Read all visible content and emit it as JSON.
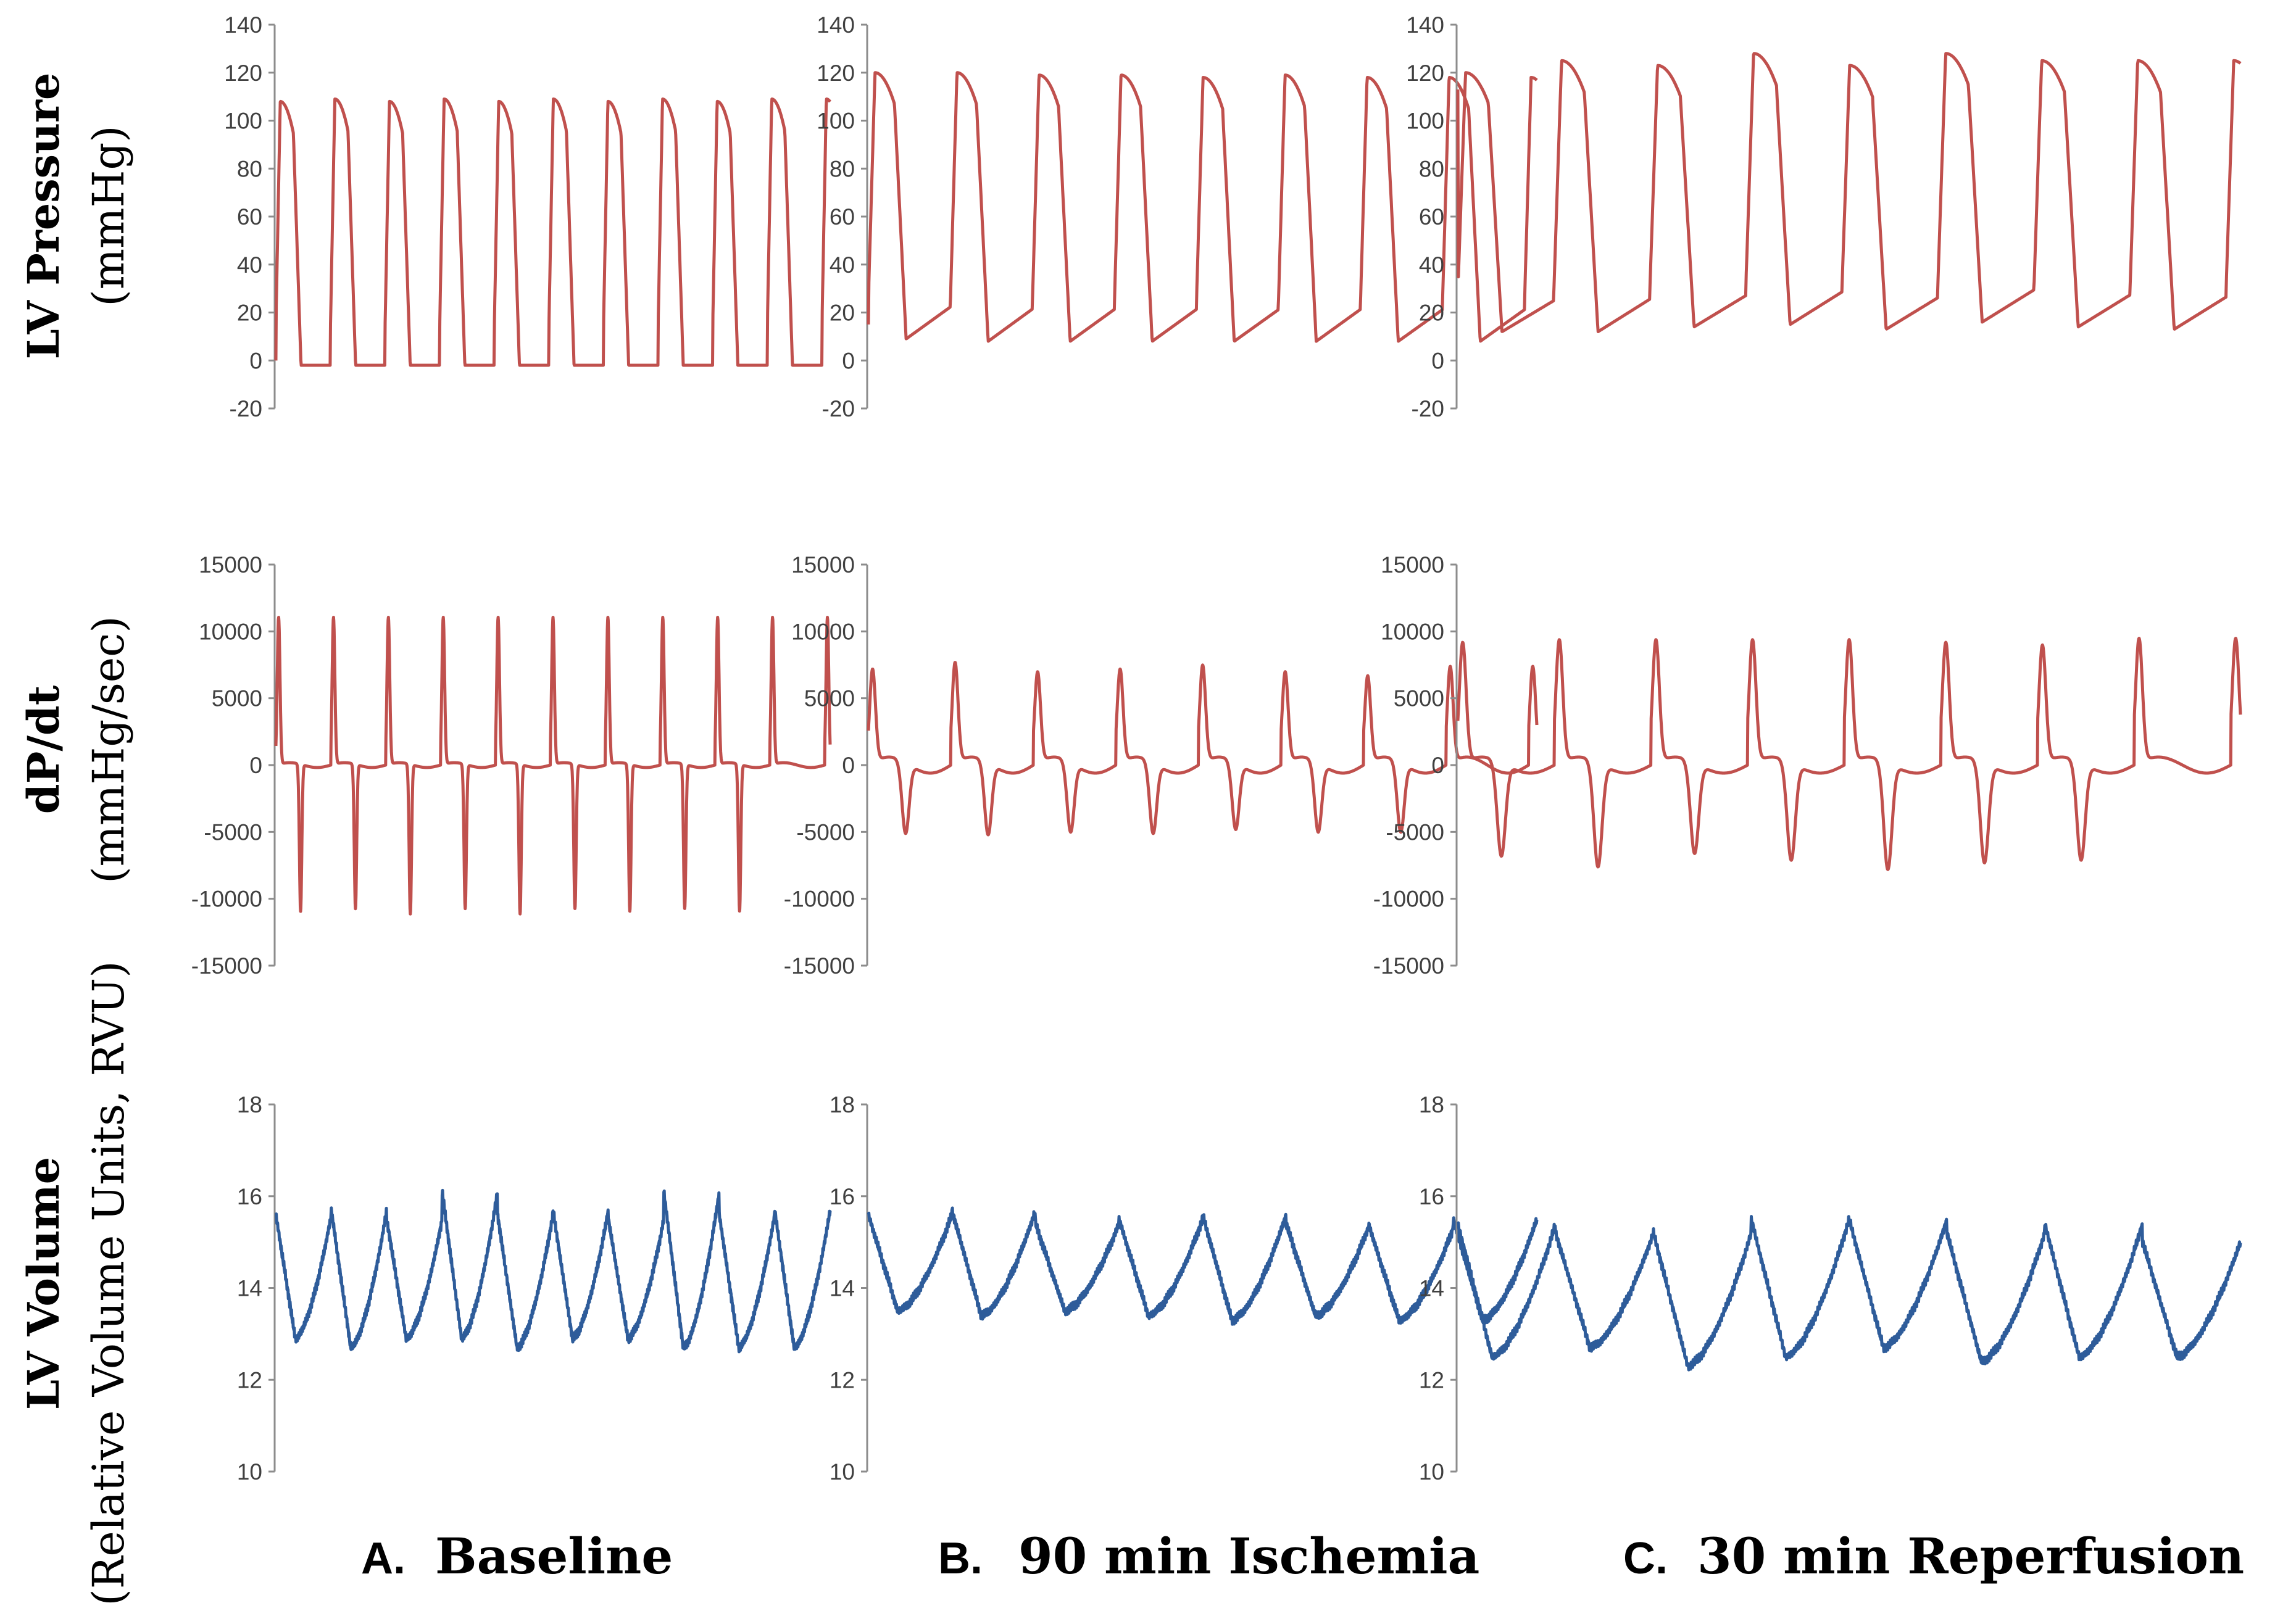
{
  "figure": {
    "row_labels": [
      {
        "bold": "LV Pressure",
        "sub": "(mmHg)"
      },
      {
        "bold": "dP/dt",
        "sub": "(mmHg/sec)"
      },
      {
        "bold": "LV Volume",
        "sub": "(Relative Volume Units, RVU)"
      }
    ],
    "column_labels": [
      {
        "letter": "A.",
        "text": "Baseline"
      },
      {
        "letter": "B.",
        "text": "90 min Ischemia"
      },
      {
        "letter": "C.",
        "text": "30 min Reperfusion"
      }
    ],
    "colors": {
      "pressure": "#c0504d",
      "dpdt": "#c0504d",
      "volume": "#2e5c9a",
      "axis": "#8c8c8c"
    }
  },
  "chart_data": [
    {
      "type": "line",
      "row": 0,
      "col": 0,
      "title": "",
      "xlabel": "",
      "ylabel": "LV Pressure (mmHg)",
      "ylim": [
        -20,
        140
      ],
      "yticks": [
        "140",
        "120",
        "100",
        "80",
        "60",
        "40",
        "20",
        "0",
        "-20"
      ],
      "series": [
        {
          "peaks": [
            108,
            109,
            108,
            109,
            108,
            109,
            108,
            109,
            108,
            109
          ],
          "troughs": [
            -2,
            -2,
            -2,
            -2,
            -2,
            -2,
            -2,
            -2,
            -2,
            -2
          ],
          "start": 0,
          "end": -1
        }
      ]
    },
    {
      "type": "line",
      "row": 0,
      "col": 1,
      "title": "",
      "xlabel": "",
      "ylabel": "LV Pressure (mmHg)",
      "ylim": [
        -20,
        140
      ],
      "yticks": [
        "140",
        "120",
        "100",
        "80",
        "60",
        "40",
        "20",
        "0",
        "-20"
      ],
      "series": [
        {
          "peaks": [
            120,
            120,
            119,
            119,
            118,
            119,
            118,
            118
          ],
          "troughs": [
            9,
            8,
            8,
            8,
            8,
            8,
            8,
            8
          ],
          "start": 15,
          "end": 115
        }
      ]
    },
    {
      "type": "line",
      "row": 0,
      "col": 2,
      "title": "",
      "xlabel": "",
      "ylabel": "LV Pressure (mmHg)",
      "ylim": [
        -20,
        140
      ],
      "yticks": [
        "140",
        "120",
        "100",
        "80",
        "60",
        "40",
        "20",
        "0",
        "-20"
      ],
      "series": [
        {
          "peaks": [
            120,
            125,
            123,
            128,
            123,
            128,
            125,
            125
          ],
          "troughs": [
            12,
            12,
            14,
            15,
            13,
            16,
            14,
            13
          ],
          "start": 113,
          "end": 114
        }
      ]
    },
    {
      "type": "line",
      "row": 1,
      "col": 0,
      "title": "",
      "xlabel": "",
      "ylabel": "dP/dt (mmHg/sec)",
      "ylim": [
        -15000,
        15000
      ],
      "yticks": [
        "15000",
        "10000",
        "5000",
        "0",
        "-5000",
        "-10000",
        "-15000"
      ],
      "series": [
        {
          "positive_peaks": [
            11000,
            11000,
            11000,
            11000,
            11000,
            11000,
            11000,
            11000,
            11000,
            11000
          ],
          "negative_peaks": [
            -11000,
            -10800,
            -11200,
            -10800,
            -11200,
            -10800,
            -11000,
            -10800,
            -11000
          ]
        }
      ]
    },
    {
      "type": "line",
      "row": 1,
      "col": 1,
      "title": "",
      "xlabel": "",
      "ylabel": "dP/dt (mmHg/sec)",
      "ylim": [
        -15000,
        15000
      ],
      "yticks": [
        "15000",
        "10000",
        "5000",
        "0",
        "-5000",
        "-10000",
        "-15000"
      ],
      "series": [
        {
          "positive_peaks": [
            7000,
            7500,
            6800,
            7000,
            7300,
            6800,
            6500,
            7200
          ],
          "negative_peaks": [
            -5300,
            -5400,
            -5200,
            -5300,
            -5000,
            -5200,
            -5200
          ]
        }
      ]
    },
    {
      "type": "line",
      "row": 1,
      "col": 2,
      "title": "",
      "xlabel": "",
      "ylabel": "dP/dt (mmHg/sec)",
      "ylim": [
        -15000,
        15000
      ],
      "yticks": [
        "15000",
        "10000",
        "5000",
        "0",
        "-5000",
        "-10000",
        "-15000"
      ],
      "series": [
        {
          "positive_peaks": [
            9000,
            9200,
            9200,
            9200,
            9200,
            9000,
            8800,
            9300
          ],
          "negative_peaks": [
            -7000,
            -7800,
            -6800,
            -7300,
            -8000,
            -7500,
            -7300
          ]
        }
      ]
    },
    {
      "type": "line",
      "row": 2,
      "col": 0,
      "title": "",
      "xlabel": "",
      "ylabel": "LV Volume (Relative Volume Units, RVU)",
      "ylim": [
        10,
        18
      ],
      "yticks": [
        "18",
        "16",
        "14",
        "12",
        "10"
      ],
      "series": [
        {
          "peaks": [
            15.6,
            15.7,
            15.5,
            16.1,
            15.6,
            15.7,
            15.5,
            16.1,
            15.6,
            15.7
          ],
          "troughs": [
            12.9,
            12.7,
            12.9,
            12.9,
            12.7,
            12.9,
            12.9,
            12.7,
            12.7
          ]
        }
      ]
    },
    {
      "type": "line",
      "row": 2,
      "col": 1,
      "title": "",
      "xlabel": "",
      "ylabel": "LV Volume (Relative Volume Units, RVU)",
      "ylim": [
        10,
        18
      ],
      "yticks": [
        "18",
        "16",
        "14",
        "12",
        "10"
      ],
      "series": [
        {
          "peaks": [
            15.6,
            15.7,
            15.4,
            15.5,
            15.6,
            15.4,
            15.3,
            15.5
          ],
          "troughs": [
            13.5,
            13.4,
            13.5,
            13.4,
            13.3,
            13.4,
            13.3
          ]
        }
      ]
    },
    {
      "type": "line",
      "row": 2,
      "col": 2,
      "title": "",
      "xlabel": "",
      "ylabel": "LV Volume (Relative Volume Units, RVU)",
      "ylim": [
        10,
        18
      ],
      "yticks": [
        "18",
        "16",
        "14",
        "12",
        "10"
      ],
      "series": [
        {
          "peaks": [
            15.4,
            15.2,
            15.2,
            15.5,
            15.5,
            15.2,
            15.4,
            15.0
          ],
          "troughs": [
            12.5,
            12.7,
            12.3,
            12.5,
            12.7,
            12.4,
            12.5,
            12.5
          ]
        }
      ]
    }
  ]
}
